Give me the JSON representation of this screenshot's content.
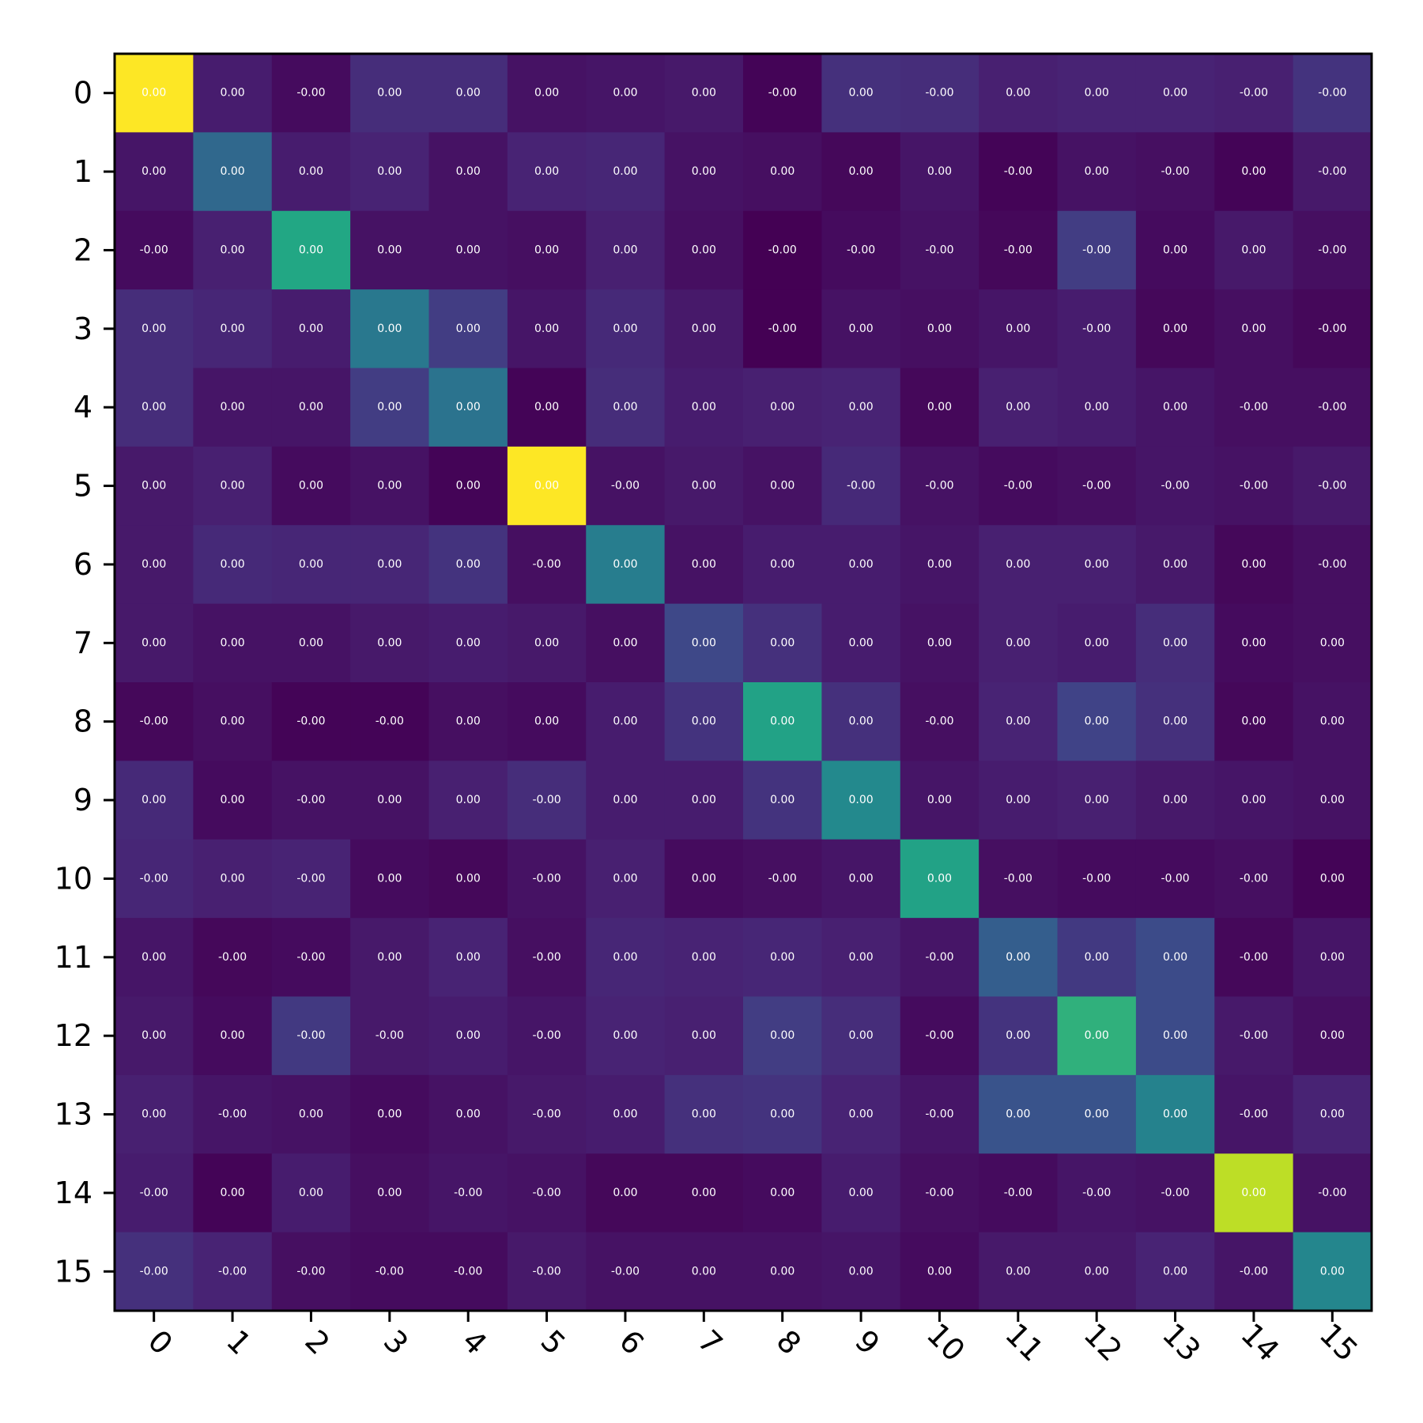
{
  "chart_data": {
    "type": "heatmap",
    "colormap": "viridis",
    "title": "",
    "xlabel": "",
    "ylabel": "",
    "x_ticks": [
      "0",
      "1",
      "2",
      "3",
      "4",
      "5",
      "6",
      "7",
      "8",
      "9",
      "10",
      "11",
      "12",
      "13",
      "14",
      "15"
    ],
    "y_ticks": [
      "0",
      "1",
      "2",
      "3",
      "4",
      "5",
      "6",
      "7",
      "8",
      "9",
      "10",
      "11",
      "12",
      "13",
      "14",
      "15"
    ],
    "x_tick_rotation_deg": 45,
    "cell_text_color": "#ffffff",
    "frame_color": "#000000",
    "grid": false,
    "color_scale_note": "intensity 0-1 mapped to viridis; yellow = max",
    "intensity": [
      [
        1.0,
        0.08,
        0.03,
        0.13,
        0.13,
        0.05,
        0.06,
        0.07,
        0.01,
        0.14,
        0.13,
        0.09,
        0.1,
        0.1,
        0.09,
        0.15
      ],
      [
        0.06,
        0.34,
        0.08,
        0.1,
        0.05,
        0.1,
        0.11,
        0.05,
        0.04,
        0.02,
        0.06,
        0.01,
        0.05,
        0.04,
        0.01,
        0.07
      ],
      [
        0.03,
        0.09,
        0.6,
        0.05,
        0.05,
        0.04,
        0.09,
        0.04,
        0.0,
        0.03,
        0.05,
        0.02,
        0.18,
        0.03,
        0.07,
        0.04
      ],
      [
        0.13,
        0.11,
        0.08,
        0.4,
        0.18,
        0.06,
        0.12,
        0.07,
        0.0,
        0.05,
        0.04,
        0.06,
        0.08,
        0.02,
        0.04,
        0.02
      ],
      [
        0.13,
        0.06,
        0.06,
        0.18,
        0.38,
        0.01,
        0.13,
        0.08,
        0.09,
        0.1,
        0.02,
        0.09,
        0.08,
        0.06,
        0.04,
        0.04
      ],
      [
        0.07,
        0.09,
        0.03,
        0.05,
        0.01,
        1.0,
        0.05,
        0.07,
        0.05,
        0.12,
        0.05,
        0.03,
        0.04,
        0.06,
        0.05,
        0.07
      ],
      [
        0.07,
        0.12,
        0.11,
        0.11,
        0.15,
        0.04,
        0.42,
        0.05,
        0.08,
        0.08,
        0.06,
        0.09,
        0.09,
        0.07,
        0.02,
        0.04
      ],
      [
        0.07,
        0.05,
        0.05,
        0.07,
        0.08,
        0.07,
        0.04,
        0.22,
        0.14,
        0.08,
        0.05,
        0.09,
        0.08,
        0.13,
        0.03,
        0.04
      ],
      [
        0.02,
        0.04,
        0.01,
        0.01,
        0.04,
        0.03,
        0.08,
        0.15,
        0.58,
        0.14,
        0.04,
        0.1,
        0.2,
        0.14,
        0.02,
        0.05
      ],
      [
        0.12,
        0.03,
        0.05,
        0.05,
        0.09,
        0.13,
        0.08,
        0.08,
        0.15,
        0.47,
        0.06,
        0.08,
        0.09,
        0.07,
        0.06,
        0.05
      ],
      [
        0.11,
        0.09,
        0.1,
        0.03,
        0.02,
        0.05,
        0.09,
        0.03,
        0.04,
        0.06,
        0.58,
        0.04,
        0.03,
        0.03,
        0.04,
        0.01
      ],
      [
        0.06,
        0.02,
        0.03,
        0.07,
        0.1,
        0.04,
        0.11,
        0.1,
        0.11,
        0.09,
        0.06,
        0.3,
        0.17,
        0.23,
        0.02,
        0.06
      ],
      [
        0.07,
        0.03,
        0.17,
        0.07,
        0.08,
        0.06,
        0.1,
        0.09,
        0.18,
        0.13,
        0.03,
        0.15,
        0.64,
        0.23,
        0.07,
        0.04
      ],
      [
        0.09,
        0.06,
        0.05,
        0.03,
        0.05,
        0.07,
        0.08,
        0.14,
        0.15,
        0.1,
        0.06,
        0.26,
        0.26,
        0.44,
        0.06,
        0.1
      ],
      [
        0.08,
        0.01,
        0.08,
        0.04,
        0.06,
        0.05,
        0.02,
        0.02,
        0.03,
        0.08,
        0.04,
        0.03,
        0.06,
        0.05,
        0.9,
        0.05
      ],
      [
        0.14,
        0.1,
        0.04,
        0.03,
        0.03,
        0.07,
        0.05,
        0.05,
        0.05,
        0.06,
        0.03,
        0.07,
        0.07,
        0.1,
        0.06,
        0.46
      ]
    ],
    "labels": [
      [
        "0.00",
        "0.00",
        "-0.00",
        "0.00",
        "0.00",
        "0.00",
        "0.00",
        "0.00",
        "-0.00",
        "0.00",
        "-0.00",
        "0.00",
        "0.00",
        "0.00",
        "-0.00",
        "-0.00"
      ],
      [
        "0.00",
        "0.00",
        "0.00",
        "0.00",
        "0.00",
        "0.00",
        "0.00",
        "0.00",
        "0.00",
        "0.00",
        "0.00",
        "-0.00",
        "0.00",
        "-0.00",
        "0.00",
        "-0.00"
      ],
      [
        "-0.00",
        "0.00",
        "0.00",
        "0.00",
        "0.00",
        "0.00",
        "0.00",
        "0.00",
        "-0.00",
        "-0.00",
        "-0.00",
        "-0.00",
        "-0.00",
        "0.00",
        "0.00",
        "-0.00"
      ],
      [
        "0.00",
        "0.00",
        "0.00",
        "0.00",
        "0.00",
        "0.00",
        "0.00",
        "0.00",
        "-0.00",
        "0.00",
        "0.00",
        "0.00",
        "-0.00",
        "0.00",
        "0.00",
        "-0.00"
      ],
      [
        "0.00",
        "0.00",
        "0.00",
        "0.00",
        "0.00",
        "0.00",
        "0.00",
        "0.00",
        "0.00",
        "0.00",
        "0.00",
        "0.00",
        "0.00",
        "0.00",
        "-0.00",
        "-0.00"
      ],
      [
        "0.00",
        "0.00",
        "0.00",
        "0.00",
        "0.00",
        "0.00",
        "-0.00",
        "0.00",
        "0.00",
        "-0.00",
        "-0.00",
        "-0.00",
        "-0.00",
        "-0.00",
        "-0.00",
        "-0.00"
      ],
      [
        "0.00",
        "0.00",
        "0.00",
        "0.00",
        "0.00",
        "-0.00",
        "0.00",
        "0.00",
        "0.00",
        "0.00",
        "0.00",
        "0.00",
        "0.00",
        "0.00",
        "0.00",
        "-0.00"
      ],
      [
        "0.00",
        "0.00",
        "0.00",
        "0.00",
        "0.00",
        "0.00",
        "0.00",
        "0.00",
        "0.00",
        "0.00",
        "0.00",
        "0.00",
        "0.00",
        "0.00",
        "0.00",
        "0.00"
      ],
      [
        "-0.00",
        "0.00",
        "-0.00",
        "-0.00",
        "0.00",
        "0.00",
        "0.00",
        "0.00",
        "0.00",
        "0.00",
        "-0.00",
        "0.00",
        "0.00",
        "0.00",
        "0.00",
        "0.00"
      ],
      [
        "0.00",
        "0.00",
        "-0.00",
        "0.00",
        "0.00",
        "-0.00",
        "0.00",
        "0.00",
        "0.00",
        "0.00",
        "0.00",
        "0.00",
        "0.00",
        "0.00",
        "0.00",
        "0.00"
      ],
      [
        "-0.00",
        "0.00",
        "-0.00",
        "0.00",
        "0.00",
        "-0.00",
        "0.00",
        "0.00",
        "-0.00",
        "0.00",
        "0.00",
        "-0.00",
        "-0.00",
        "-0.00",
        "-0.00",
        "0.00"
      ],
      [
        "0.00",
        "-0.00",
        "-0.00",
        "0.00",
        "0.00",
        "-0.00",
        "0.00",
        "0.00",
        "0.00",
        "0.00",
        "-0.00",
        "0.00",
        "0.00",
        "0.00",
        "-0.00",
        "0.00"
      ],
      [
        "0.00",
        "0.00",
        "-0.00",
        "-0.00",
        "0.00",
        "-0.00",
        "0.00",
        "0.00",
        "0.00",
        "0.00",
        "-0.00",
        "0.00",
        "0.00",
        "0.00",
        "-0.00",
        "0.00"
      ],
      [
        "0.00",
        "-0.00",
        "0.00",
        "0.00",
        "0.00",
        "-0.00",
        "0.00",
        "0.00",
        "0.00",
        "0.00",
        "-0.00",
        "0.00",
        "0.00",
        "0.00",
        "-0.00",
        "0.00"
      ],
      [
        "-0.00",
        "0.00",
        "0.00",
        "0.00",
        "-0.00",
        "-0.00",
        "0.00",
        "0.00",
        "0.00",
        "0.00",
        "-0.00",
        "-0.00",
        "-0.00",
        "-0.00",
        "0.00",
        "-0.00"
      ],
      [
        "-0.00",
        "-0.00",
        "-0.00",
        "-0.00",
        "-0.00",
        "-0.00",
        "-0.00",
        "0.00",
        "0.00",
        "0.00",
        "0.00",
        "0.00",
        "0.00",
        "0.00",
        "-0.00",
        "0.00"
      ]
    ]
  }
}
